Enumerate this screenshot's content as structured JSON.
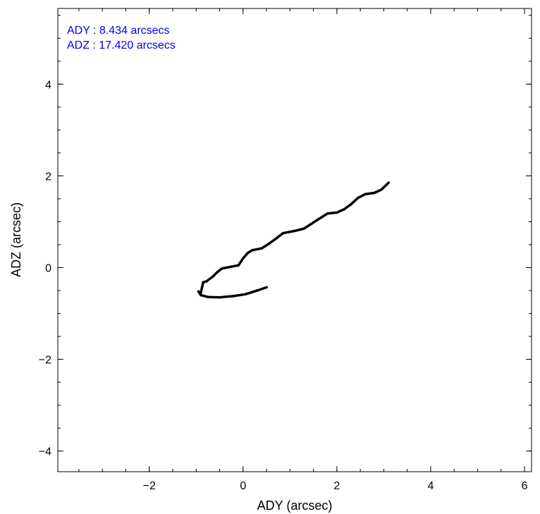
{
  "chart_data": {
    "type": "line",
    "title": "",
    "xlabel": "ADY (arcsec)",
    "ylabel": "ADZ (arcsec)",
    "xlim": [
      -3.95,
      6.15
    ],
    "ylim": [
      -4.45,
      5.65
    ],
    "x_ticks": [
      -2,
      0,
      2,
      4,
      6
    ],
    "y_ticks": [
      -4,
      -2,
      0,
      2,
      4
    ],
    "x_tick_labels": [
      "−2",
      "0",
      "2",
      "4",
      "6"
    ],
    "y_tick_labels": [
      "−4",
      "−2",
      "0",
      "2",
      "4"
    ],
    "x_minor_step": 0.5,
    "y_minor_step": 0.5,
    "grid": false,
    "legend": "none",
    "annotations": [
      {
        "text": "ADY : 8.434 arcsecs"
      },
      {
        "text": "ADZ : 17.420 arcsecs"
      }
    ],
    "annotation_color": "#0000ee",
    "series": [
      {
        "color": "#000000",
        "points": [
          [
            0.5,
            -0.43
          ],
          [
            0.3,
            -0.5
          ],
          [
            0.05,
            -0.58
          ],
          [
            -0.2,
            -0.62
          ],
          [
            -0.5,
            -0.65
          ],
          [
            -0.75,
            -0.64
          ],
          [
            -0.9,
            -0.6
          ],
          [
            -0.95,
            -0.52
          ],
          [
            -0.9,
            -0.55
          ],
          [
            -0.88,
            -0.45
          ],
          [
            -0.85,
            -0.32
          ],
          [
            -0.78,
            -0.3
          ],
          [
            -0.65,
            -0.2
          ],
          [
            -0.55,
            -0.1
          ],
          [
            -0.45,
            -0.02
          ],
          [
            -0.35,
            0.0
          ],
          [
            -0.1,
            0.05
          ],
          [
            0.0,
            0.2
          ],
          [
            0.1,
            0.32
          ],
          [
            0.2,
            0.38
          ],
          [
            0.4,
            0.42
          ],
          [
            0.55,
            0.52
          ],
          [
            0.7,
            0.63
          ],
          [
            0.85,
            0.75
          ],
          [
            1.1,
            0.8
          ],
          [
            1.3,
            0.85
          ],
          [
            1.45,
            0.95
          ],
          [
            1.6,
            1.05
          ],
          [
            1.8,
            1.18
          ],
          [
            2.0,
            1.2
          ],
          [
            2.15,
            1.27
          ],
          [
            2.3,
            1.38
          ],
          [
            2.45,
            1.52
          ],
          [
            2.6,
            1.6
          ],
          [
            2.8,
            1.63
          ],
          [
            2.95,
            1.7
          ],
          [
            3.1,
            1.85
          ]
        ]
      }
    ]
  }
}
